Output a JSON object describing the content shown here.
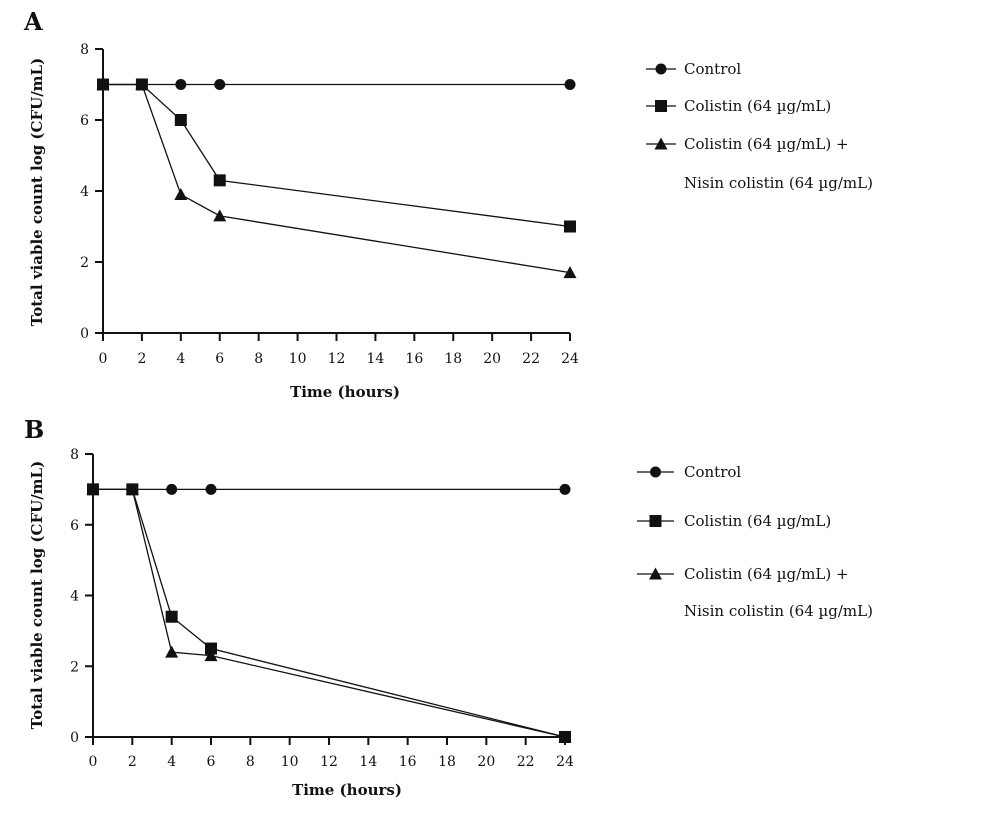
{
  "chart_data": [
    {
      "type": "line",
      "panel": "A",
      "xlabel": "Time (hours)",
      "ylabel": "Total viable count log (CFU/mL)",
      "xlim": [
        0,
        24
      ],
      "ylim": [
        0,
        8
      ],
      "xticks": [
        0,
        2,
        4,
        6,
        8,
        10,
        12,
        14,
        16,
        18,
        20,
        22,
        24
      ],
      "yticks": [
        0,
        2,
        4,
        6,
        8
      ],
      "legend_position": "right",
      "grid": false,
      "series": [
        {
          "name": "Control",
          "marker": "circle",
          "x": [
            0,
            2,
            4,
            6,
            24
          ],
          "y": [
            7,
            7,
            7,
            7,
            7
          ]
        },
        {
          "name": "Colistin (64 µg/mL)",
          "marker": "square",
          "x": [
            0,
            2,
            4,
            6,
            24
          ],
          "y": [
            7,
            7,
            6,
            4.3,
            3
          ]
        },
        {
          "name": "Colistin (64 µg/mL) +",
          "name_line2": "Nisin colistin (64 µg/mL)",
          "marker": "triangle",
          "x": [
            0,
            2,
            4,
            6,
            24
          ],
          "y": [
            7,
            7,
            3.9,
            3.3,
            1.7
          ]
        }
      ]
    },
    {
      "type": "line",
      "panel": "B",
      "xlabel": "Time (hours)",
      "ylabel": "Total viable count log (CFU/mL)",
      "xlim": [
        0,
        24
      ],
      "ylim": [
        0,
        8
      ],
      "xticks": [
        0,
        2,
        4,
        6,
        8,
        10,
        12,
        14,
        16,
        18,
        20,
        22,
        24
      ],
      "yticks": [
        0,
        2,
        4,
        6,
        8
      ],
      "legend_position": "right",
      "grid": false,
      "series": [
        {
          "name": "Control",
          "marker": "circle",
          "x": [
            0,
            2,
            4,
            6,
            24
          ],
          "y": [
            7,
            7,
            7,
            7,
            7
          ]
        },
        {
          "name": "Colistin (64 µg/mL)",
          "marker": "square",
          "x": [
            0,
            2,
            4,
            6,
            24
          ],
          "y": [
            7,
            7,
            3.4,
            2.5,
            0
          ]
        },
        {
          "name": "Colistin (64 µg/mL) +",
          "name_line2": "Nisin colistin (64 µg/mL)",
          "marker": "triangle",
          "x": [
            0,
            2,
            4,
            6,
            24
          ],
          "y": [
            7,
            7,
            2.4,
            2.3,
            0
          ]
        }
      ]
    }
  ]
}
